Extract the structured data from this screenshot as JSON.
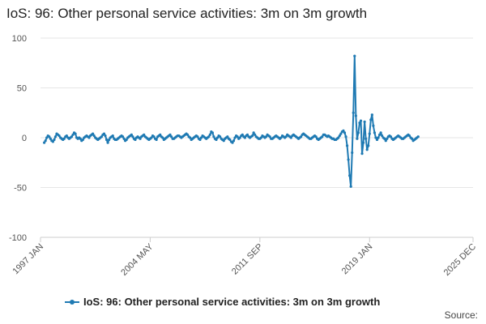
{
  "chart_data": {
    "type": "line",
    "title": "IoS: 96: Other personal service activities: 3m on 3m growth",
    "xlabel": "",
    "ylabel": "",
    "ylim": [
      -100,
      100
    ],
    "yticks": [
      100,
      50,
      0,
      -50,
      -100
    ],
    "xlim": [
      1997.0,
      2025.917
    ],
    "xticks": [
      {
        "label": "1997 JAN",
        "x": 1997.0
      },
      {
        "label": "2004 MAY",
        "x": 2004.333
      },
      {
        "label": "2011 SEP",
        "x": 2011.667
      },
      {
        "label": "2019 JAN",
        "x": 2019.0
      },
      {
        "label": "2025 DEC",
        "x": 2025.917
      }
    ],
    "grid": "horizontal",
    "legend_position": "bottom",
    "series_color": "#1f7ab3",
    "series": [
      {
        "name": "IoS: 96: Other personal service activities: 3m on 3m growth",
        "x_start": 1997.25,
        "x_step_months": 1,
        "values": [
          -5,
          -3,
          0,
          2,
          1,
          -1,
          -3,
          -4,
          -2,
          1,
          4,
          3,
          2,
          0,
          -1,
          -2,
          -1,
          1,
          2,
          0,
          -1,
          0,
          1,
          3,
          5,
          4,
          0,
          -1,
          0,
          -1,
          -3,
          -2,
          0,
          1,
          2,
          1,
          0,
          2,
          3,
          4,
          2,
          0,
          -1,
          -2,
          -1,
          0,
          1,
          3,
          4,
          2,
          -2,
          -5,
          -2,
          0,
          1,
          2,
          -1,
          -2,
          -2,
          -1,
          0,
          1,
          2,
          1,
          -1,
          -3,
          -2,
          0,
          1,
          2,
          3,
          1,
          -1,
          -2,
          0,
          1,
          0,
          -1,
          1,
          2,
          3,
          1,
          0,
          -1,
          -2,
          -1,
          0,
          2,
          1,
          -1,
          -2,
          1,
          2,
          3,
          1,
          0,
          -2,
          -1,
          0,
          1,
          2,
          3,
          1,
          -1,
          -1,
          0,
          1,
          2,
          2,
          1,
          0,
          1,
          2,
          3,
          4,
          3,
          1,
          0,
          -2,
          -1,
          0,
          1,
          2,
          1,
          -1,
          -2,
          0,
          2,
          1,
          0,
          -1,
          0,
          1,
          3,
          6,
          5,
          1,
          -1,
          -2,
          0,
          2,
          1,
          -1,
          -2,
          -3,
          -1,
          0,
          1,
          -1,
          -2,
          -4,
          -5,
          -3,
          0,
          2,
          1,
          -1,
          0,
          2,
          3,
          1,
          0,
          2,
          3,
          1,
          0,
          1,
          2,
          5,
          3,
          1,
          0,
          -1,
          -1,
          0,
          2,
          1,
          0,
          1,
          3,
          2,
          1,
          -1,
          -1,
          0,
          1,
          2,
          1,
          0,
          -1,
          0,
          2,
          1,
          0,
          1,
          3,
          2,
          1,
          0,
          2,
          3,
          2,
          1,
          0,
          -1,
          0,
          1,
          3,
          4,
          3,
          2,
          1,
          0,
          -1,
          -1,
          0,
          1,
          2,
          1,
          -1,
          -2,
          -1,
          0,
          1,
          3,
          3,
          2,
          1,
          2,
          1,
          0,
          -1,
          -1,
          -2,
          -2,
          -1,
          0,
          2,
          4,
          6,
          7,
          5,
          1,
          -8,
          -22,
          -38,
          -49,
          -15,
          25,
          82,
          22,
          -1,
          5,
          15,
          17,
          -16,
          -5,
          16,
          -1,
          -12,
          -8,
          4,
          18,
          23,
          12,
          5,
          0,
          -2,
          0,
          3,
          5,
          2,
          0,
          -1,
          -3,
          -1,
          1,
          2,
          1,
          -1,
          -2,
          -1,
          0,
          1,
          2,
          1,
          0,
          -1,
          -1,
          0,
          1,
          2,
          3,
          2,
          0,
          -1,
          -3,
          -2,
          -1,
          0,
          1
        ]
      }
    ]
  },
  "source_label": "Source:"
}
